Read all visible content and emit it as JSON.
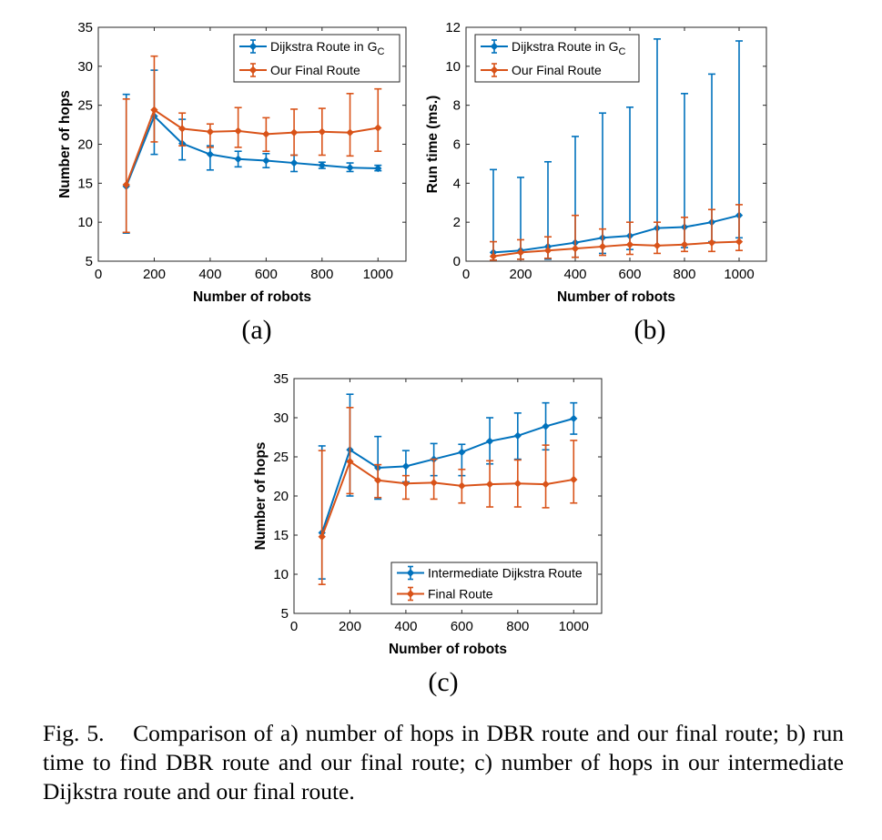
{
  "colors": {
    "blue": "#0072BD",
    "orange": "#D95319"
  },
  "panels": [
    {
      "label": "(a)"
    },
    {
      "label": "(b)"
    },
    {
      "label": "(c)"
    }
  ],
  "caption": {
    "prefix": "Fig. 5.",
    "text": "Comparison of a) number of hops in DBR route and our final route; b) run time to find DBR route and our final route; c) number of hops in our intermediate Dijkstra route and our final route."
  },
  "chart_data": [
    {
      "type": "line",
      "xlabel": "Number of robots",
      "ylabel": "Number of hops",
      "xlim": [
        0,
        1100
      ],
      "ylim": [
        5,
        35
      ],
      "xticks": [
        0,
        200,
        400,
        600,
        800,
        1000
      ],
      "yticks": [
        5,
        10,
        15,
        20,
        25,
        30,
        35
      ],
      "legend": "top-right",
      "x": [
        100,
        200,
        300,
        400,
        500,
        600,
        700,
        800,
        900,
        1000
      ],
      "series": [
        {
          "name": "Dijkstra Route in G",
          "name_subscript": "C",
          "color": "blue",
          "marker": "diamond",
          "values": [
            14.6,
            23.6,
            20.1,
            18.7,
            18.1,
            17.9,
            17.6,
            17.3,
            17.0,
            16.9
          ],
          "err_low": [
            8.6,
            18.7,
            18.0,
            16.7,
            17.1,
            17.0,
            16.5,
            16.9,
            16.5,
            16.6
          ],
          "err_high": [
            26.4,
            29.5,
            23.2,
            19.8,
            19.1,
            18.8,
            18.6,
            17.7,
            17.6,
            17.3
          ]
        },
        {
          "name": "Our Final Route",
          "color": "orange",
          "marker": "diamond",
          "values": [
            14.8,
            24.4,
            22.0,
            21.6,
            21.7,
            21.3,
            21.5,
            21.6,
            21.5,
            22.1
          ],
          "err_low": [
            8.7,
            20.3,
            19.8,
            19.6,
            19.6,
            19.1,
            18.6,
            18.6,
            18.5,
            19.1
          ],
          "err_high": [
            25.8,
            31.3,
            24.0,
            22.6,
            24.7,
            23.4,
            24.5,
            24.6,
            26.5,
            27.1
          ]
        }
      ]
    },
    {
      "type": "line",
      "xlabel": "Number of robots",
      "ylabel": "Run time (ms.)",
      "xlim": [
        0,
        1100
      ],
      "ylim": [
        0,
        12
      ],
      "xticks": [
        0,
        200,
        400,
        600,
        800,
        1000
      ],
      "yticks": [
        0,
        2,
        4,
        6,
        8,
        10,
        12
      ],
      "legend": "top-left",
      "x": [
        100,
        200,
        300,
        400,
        500,
        600,
        700,
        800,
        900,
        1000
      ],
      "series": [
        {
          "name": "Dijkstra Route in G",
          "name_subscript": "C",
          "color": "blue",
          "marker": "diamond",
          "values": [
            0.45,
            0.55,
            0.75,
            0.95,
            1.2,
            1.3,
            1.7,
            1.75,
            2.0,
            2.35
          ],
          "err_low": [
            0.05,
            0.1,
            0.1,
            0.2,
            0.4,
            0.6,
            0.8,
            0.7,
            1.0,
            1.2
          ],
          "err_high": [
            4.7,
            4.3,
            5.1,
            6.4,
            7.6,
            7.9,
            11.4,
            8.6,
            9.6,
            11.3
          ]
        },
        {
          "name": "Our Final Route",
          "color": "orange",
          "marker": "diamond",
          "values": [
            0.25,
            0.45,
            0.55,
            0.65,
            0.75,
            0.85,
            0.8,
            0.85,
            0.95,
            1.0
          ],
          "err_low": [
            0.05,
            0.1,
            0.15,
            0.2,
            0.3,
            0.35,
            0.4,
            0.5,
            0.5,
            0.55
          ],
          "err_high": [
            1.0,
            1.1,
            1.25,
            2.35,
            1.65,
            2.0,
            2.0,
            2.25,
            2.65,
            2.9
          ]
        }
      ]
    },
    {
      "type": "line",
      "xlabel": "Number of robots",
      "ylabel": "Number of hops",
      "xlim": [
        0,
        1100
      ],
      "ylim": [
        5,
        35
      ],
      "xticks": [
        0,
        200,
        400,
        600,
        800,
        1000
      ],
      "yticks": [
        5,
        10,
        15,
        20,
        25,
        30,
        35
      ],
      "legend": "bottom-right",
      "x": [
        100,
        200,
        300,
        400,
        500,
        600,
        700,
        800,
        900,
        1000
      ],
      "series": [
        {
          "name": "Intermediate Dijkstra Route",
          "color": "blue",
          "marker": "diamond",
          "values": [
            15.3,
            25.9,
            23.6,
            23.8,
            24.7,
            25.6,
            27.0,
            27.7,
            28.9,
            29.9
          ],
          "err_low": [
            9.4,
            20.0,
            19.6,
            21.8,
            22.6,
            22.6,
            24.1,
            24.7,
            25.9,
            27.9
          ],
          "err_high": [
            26.4,
            33.0,
            27.6,
            25.8,
            26.7,
            26.6,
            30.0,
            30.6,
            31.9,
            31.9
          ]
        },
        {
          "name": "Final Route",
          "color": "orange",
          "marker": "diamond",
          "values": [
            14.8,
            24.4,
            22.0,
            21.6,
            21.7,
            21.3,
            21.5,
            21.6,
            21.5,
            22.1
          ],
          "err_low": [
            8.7,
            20.3,
            19.8,
            19.6,
            19.6,
            19.1,
            18.6,
            18.6,
            18.5,
            19.1
          ],
          "err_high": [
            25.8,
            31.3,
            24.0,
            22.6,
            24.7,
            23.4,
            24.5,
            24.6,
            26.5,
            27.1
          ]
        }
      ]
    }
  ]
}
